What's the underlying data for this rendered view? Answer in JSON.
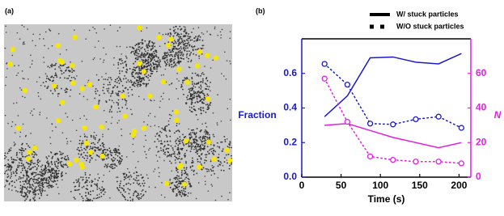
{
  "panel_a_label": "(a)",
  "chart_data": {
    "type": "line",
    "panel_label": "(b)",
    "xlabel": "Time (s)",
    "ylabel": "Fraction",
    "y2label": "N",
    "x": [
      29,
      58,
      87,
      116,
      145,
      174,
      203
    ],
    "xlim": [
      0,
      215
    ],
    "xticks": [
      0,
      50,
      100,
      150,
      200
    ],
    "ylim": [
      0,
      0.8
    ],
    "yticks": [
      {
        "value": 0,
        "label": "0.0"
      },
      0.2,
      0.4,
      0.6
    ],
    "y2lim": [
      0,
      80
    ],
    "y2ticks": [
      0,
      20,
      40,
      60
    ],
    "left_color": "#1a1acc",
    "right_color": "#e020e0",
    "legend": [
      {
        "label": "W/ stuck particles",
        "style": "solid"
      },
      {
        "label": "W/O stuck particles",
        "style": "dotted"
      }
    ],
    "series": [
      {
        "color": "#1a1acc",
        "style": "solid",
        "values": [
          0.35,
          0.47,
          0.69,
          0.695,
          0.665,
          0.655,
          0.715
        ]
      },
      {
        "color": "#1a1acc",
        "style": "dotted",
        "values": [
          0.655,
          0.535,
          0.31,
          0.305,
          0.335,
          0.35,
          0.285
        ]
      },
      {
        "color": "#e020e0",
        "style": "solid",
        "axis": "y2",
        "values": [
          30,
          31,
          27,
          23,
          20,
          17,
          20
        ]
      },
      {
        "color": "#e020e0",
        "style": "dotted",
        "axis": "y2",
        "values": [
          57,
          32,
          12,
          10,
          9,
          9,
          8
        ]
      }
    ]
  }
}
